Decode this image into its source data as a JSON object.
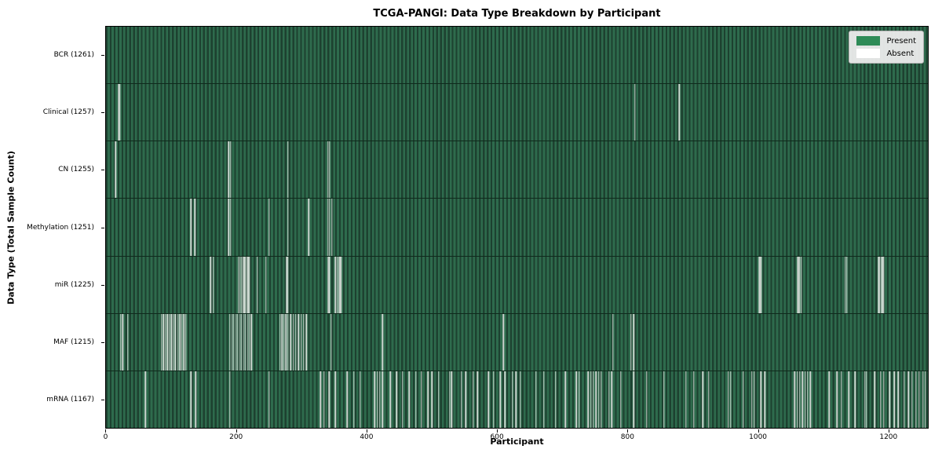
{
  "figure": {
    "title": "TCGA-PANGI: Data Type Breakdown by Participant",
    "xlabel": "Participant",
    "ylabel": "Data Type (Total Sample Count)"
  },
  "legend": {
    "items": [
      {
        "label": "Present",
        "color": "#2e8b57"
      },
      {
        "label": "Absent",
        "color": "#ffffff"
      }
    ]
  },
  "colors": {
    "present_texture_light": "#2e6b4d",
    "present_texture_dark": "#1d4130",
    "absent_stripe": "#ebefeb",
    "row_divider": "#0f2a1c",
    "axis": "#000000",
    "legend_bg": "#ececec",
    "legend_border": "#b3b3b3"
  },
  "chart_data": {
    "type": "heatmap",
    "description": "Presence/absence matrix: one thin green column per participant per data-type row; white stripes mark participants missing that data type.",
    "title": "TCGA-PANGI: Data Type Breakdown by Participant",
    "xlabel": "Participant",
    "ylabel": "Data Type (Total Sample Count)",
    "n_participants": 1261,
    "x_axis": {
      "ticks": [
        0,
        200,
        400,
        600,
        800,
        1000,
        1200
      ],
      "range": [
        0,
        1261
      ]
    },
    "legend_entries": [
      "Present",
      "Absent"
    ],
    "legend_position": "upper right",
    "rows": [
      {
        "label": "BCR (1261)",
        "data_type": "BCR",
        "present_count": 1261,
        "absent_participants": []
      },
      {
        "label": "Clinical (1257)",
        "data_type": "Clinical",
        "present_count": 1257,
        "absent_participants": [
          19,
          21,
          812,
          880
        ]
      },
      {
        "label": "CN (1255)",
        "data_type": "CN",
        "present_count": 1255,
        "absent_participants": [
          14,
          188,
          191,
          279,
          340,
          343
        ]
      },
      {
        "label": "Methylation (1251)",
        "data_type": "Methylation",
        "present_count": 1251,
        "absent_participants": [
          130,
          136,
          188,
          191,
          250,
          279,
          311,
          340,
          343,
          346
        ]
      },
      {
        "label": "miR (1225)",
        "data_type": "miR",
        "present_count": 1225,
        "absent_participants": [
          160,
          164,
          203,
          205,
          208,
          210,
          212,
          214,
          216,
          218,
          220,
          232,
          245,
          277,
          279,
          340,
          342,
          343,
          352,
          355,
          357,
          359,
          361,
          1003,
          1005,
          1061,
          1063,
          1065,
          1067,
          1135,
          1137,
          1186,
          1188,
          1190,
          1192,
          1194
        ]
      },
      {
        "label": "MAF (1215)",
        "data_type": "MAF",
        "present_count": 1215,
        "absent_participants": [
          22,
          25,
          33,
          85,
          88,
          91,
          94,
          97,
          100,
          103,
          106,
          110,
          113,
          116,
          119,
          122,
          190,
          193,
          196,
          199,
          202,
          205,
          208,
          211,
          214,
          217,
          220,
          223,
          267,
          270,
          273,
          276,
          279,
          283,
          287,
          291,
          295,
          299,
          303,
          307,
          345,
          424,
          610,
          778,
          806,
          810
        ]
      },
      {
        "label": "mRNA (1167)",
        "data_type": "mRNA",
        "present_count": 1167,
        "absent_participants": [
          60,
          130,
          137,
          190,
          250,
          329,
          334,
          342,
          352,
          370,
          380,
          390,
          412,
          416,
          420,
          424,
          436,
          446,
          455,
          465,
          475,
          484,
          494,
          500,
          510,
          527,
          530,
          545,
          552,
          563,
          570,
          587,
          595,
          605,
          612,
          624,
          629,
          636,
          660,
          672,
          690,
          705,
          722,
          726,
          740,
          744,
          748,
          752,
          756,
          760,
          772,
          776,
          790,
          810,
          830,
          856,
          890,
          902,
          916,
          925,
          955,
          959,
          978,
          991,
          995,
          1005,
          1011,
          1057,
          1061,
          1065,
          1069,
          1073,
          1077,
          1081,
          1110,
          1122,
          1129,
          1140,
          1150,
          1165,
          1167,
          1180,
          1189,
          1194,
          1203,
          1210,
          1216,
          1225,
          1232,
          1237,
          1243,
          1248,
          1254,
          1258
        ]
      }
    ]
  }
}
